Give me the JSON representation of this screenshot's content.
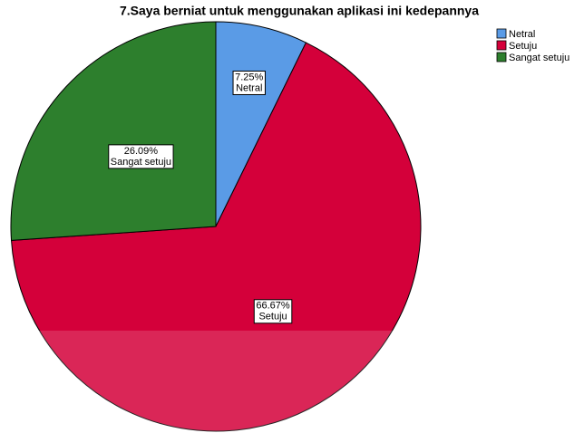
{
  "chart_data": {
    "type": "pie",
    "title": "7.Saya berniat untuk menggunakan aplikasi ini kedepannya",
    "categories": [
      "Netral",
      "Setuju",
      "Sangat setuju"
    ],
    "values": [
      7.25,
      66.67,
      26.09
    ],
    "value_labels": [
      "7.25%",
      "66.67%",
      "26.09%"
    ],
    "colors": [
      "#5a9be6",
      "#d4003a",
      "#2d7f2d"
    ],
    "legend": "top-right"
  }
}
